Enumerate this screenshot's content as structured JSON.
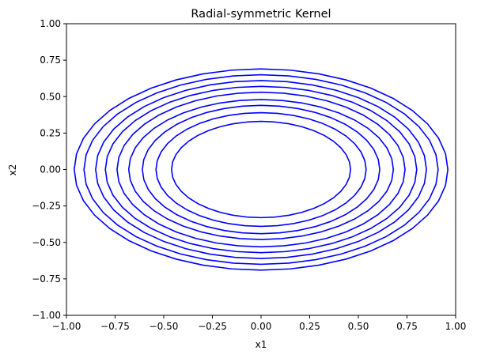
{
  "chart_data": {
    "type": "line",
    "subtype": "contour",
    "title": "Radial-symmetric Kernel",
    "xlabel": "x1",
    "ylabel": "x2",
    "xlim": [
      -1.0,
      1.0
    ],
    "ylim": [
      -1.0,
      1.0
    ],
    "xticks": [
      "−1.00",
      "−0.75",
      "−0.50",
      "−0.25",
      "0.00",
      "0.25",
      "0.50",
      "0.75",
      "1.00"
    ],
    "yticks": [
      "−1.00",
      "−0.75",
      "−0.50",
      "−0.25",
      "0.00",
      "0.25",
      "0.50",
      "0.75",
      "1.00"
    ],
    "xtick_values": [
      -1.0,
      -0.75,
      -0.5,
      -0.25,
      0.0,
      0.25,
      0.5,
      0.75,
      1.0
    ],
    "ytick_values": [
      -1.0,
      -0.75,
      -0.5,
      -0.25,
      0.0,
      0.25,
      0.5,
      0.75,
      1.0
    ],
    "grid": false,
    "line_color": "#0000ff",
    "series": [
      {
        "rx": 0.46,
        "ry": 0.33
      },
      {
        "rx": 0.54,
        "ry": 0.39
      },
      {
        "rx": 0.61,
        "ry": 0.44
      },
      {
        "rx": 0.68,
        "ry": 0.48
      },
      {
        "rx": 0.74,
        "ry": 0.53
      },
      {
        "rx": 0.8,
        "ry": 0.57
      },
      {
        "rx": 0.85,
        "ry": 0.61
      },
      {
        "rx": 0.91,
        "ry": 0.65
      },
      {
        "rx": 0.96,
        "ry": 0.69
      }
    ]
  }
}
